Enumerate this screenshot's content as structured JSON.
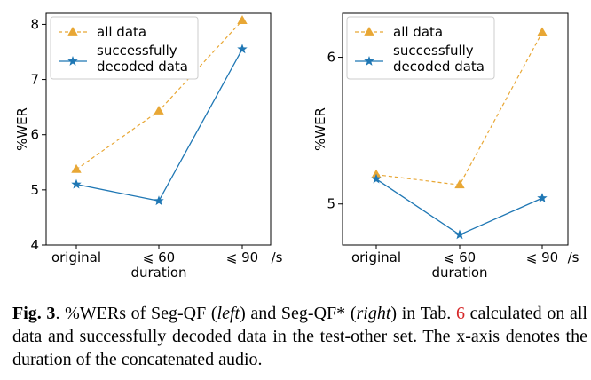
{
  "colors": {
    "all": "#e8a735",
    "decoded": "#1f77b4",
    "ref": "#d62728"
  },
  "chart_data": [
    {
      "type": "line",
      "categories": [
        "original",
        "⩽ 60",
        "⩽ 90"
      ],
      "x_unit": "/s",
      "xlabel": "duration",
      "ylabel": "%WER",
      "ylim": [
        4,
        8.2
      ],
      "yticks": [
        "4",
        "5",
        "6",
        "7",
        "8"
      ],
      "legend": "top-left",
      "series": [
        {
          "name": "all data",
          "values": [
            5.37,
            6.43,
            8.07
          ]
        },
        {
          "name": "successfully decoded data",
          "values": [
            5.1,
            4.8,
            7.55
          ]
        }
      ]
    },
    {
      "type": "line",
      "categories": [
        "original",
        "⩽ 60",
        "⩽ 90"
      ],
      "x_unit": "/s",
      "xlabel": "duration",
      "ylabel": "%WER",
      "ylim": [
        4.72,
        6.3
      ],
      "yticks": [
        "5",
        "6"
      ],
      "legend": "top-left",
      "series": [
        {
          "name": "all data",
          "values": [
            5.2,
            5.13,
            6.17
          ]
        },
        {
          "name": "successfully decoded data",
          "values": [
            5.17,
            4.79,
            5.04
          ]
        }
      ]
    }
  ],
  "caption": {
    "label": "Fig. 3",
    "t1": ".  %WERs of Seg-QF (",
    "left": "left",
    "t2": ") and Seg-QF* (",
    "right": "right",
    "t3": ") in Tab. ",
    "ref": "6",
    "t4": " calculated on all data and successfully decoded data in the test-other set. The x-axis denotes the duration of the concatenated audio."
  }
}
